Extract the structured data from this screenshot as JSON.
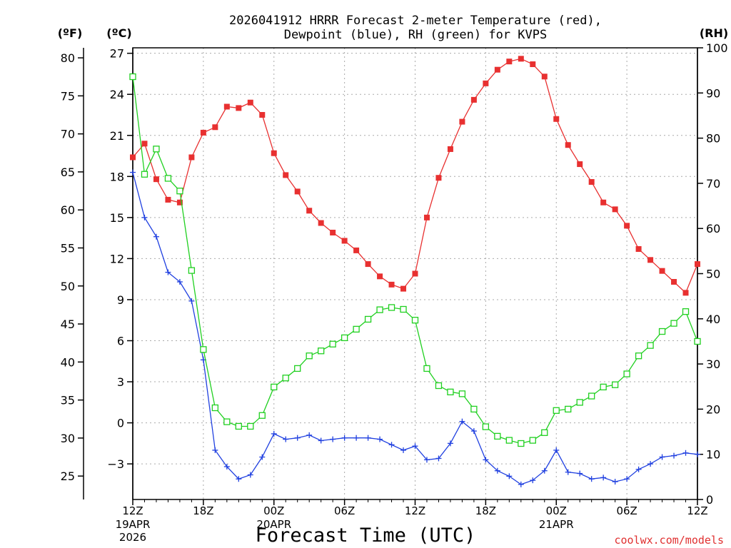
{
  "chart_data": {
    "type": "line",
    "title_line1": "2026041912 HRRR Forecast 2-meter Temperature (red),",
    "title_line2": "Dewpoint (blue), RH (green) for KVPS",
    "xlabel": "Forecast Time (UTC)",
    "credit": "coolwx.com/models",
    "units": {
      "fahrenheit": "(ºF)",
      "celsius": "(ºC)",
      "rh": "(RH)"
    },
    "x_range": [
      0,
      48
    ],
    "celsius_axis": {
      "range": [
        -5.6,
        27.4
      ],
      "ticks": [
        "27",
        "24",
        "21",
        "18",
        "15",
        "12",
        "9",
        "6",
        "3",
        "0",
        "−3"
      ],
      "tick_values": [
        27,
        24,
        21,
        18,
        15,
        12,
        9,
        6,
        3,
        0,
        -3
      ]
    },
    "fahrenheit_axis": {
      "ticks": [
        "80",
        "75",
        "70",
        "65",
        "60",
        "55",
        "50",
        "45",
        "40",
        "35",
        "30",
        "25"
      ],
      "tick_values": [
        80,
        75,
        70,
        65,
        60,
        55,
        50,
        45,
        40,
        35,
        30,
        25
      ]
    },
    "rh_axis": {
      "range": [
        0,
        100
      ],
      "ticks": [
        "100",
        "90",
        "80",
        "70",
        "60",
        "50",
        "40",
        "30",
        "20",
        "10",
        "0"
      ],
      "tick_values": [
        100,
        90,
        80,
        70,
        60,
        50,
        40,
        30,
        20,
        10,
        0
      ]
    },
    "x_ticks": [
      {
        "x": 0,
        "label": "12Z",
        "sub1": "19APR",
        "sub2": "2026"
      },
      {
        "x": 6,
        "label": "18Z",
        "sub1": "",
        "sub2": ""
      },
      {
        "x": 12,
        "label": "00Z",
        "sub1": "20APR",
        "sub2": ""
      },
      {
        "x": 18,
        "label": "06Z",
        "sub1": "",
        "sub2": ""
      },
      {
        "x": 24,
        "label": "12Z",
        "sub1": "",
        "sub2": ""
      },
      {
        "x": 30,
        "label": "18Z",
        "sub1": "",
        "sub2": ""
      },
      {
        "x": 36,
        "label": "00Z",
        "sub1": "21APR",
        "sub2": ""
      },
      {
        "x": 42,
        "label": "06Z",
        "sub1": "",
        "sub2": ""
      },
      {
        "x": 48,
        "label": "12Z",
        "sub1": "",
        "sub2": ""
      }
    ],
    "grid": true,
    "series": [
      {
        "color": "#e83030",
        "marker": "filled-square",
        "unit": "C",
        "values": [
          19.4,
          20.4,
          17.8,
          16.3,
          16.1,
          19.4,
          21.2,
          21.6,
          23.1,
          23.0,
          23.4,
          22.5,
          19.7,
          18.1,
          16.9,
          15.5,
          14.6,
          13.9,
          13.3,
          12.6,
          11.6,
          10.7,
          10.1,
          9.8,
          10.9,
          15.0,
          17.9,
          20.0,
          22.0,
          23.6,
          24.8,
          25.8,
          26.4,
          26.6,
          26.2,
          25.3,
          22.2,
          20.3,
          18.9,
          17.6,
          16.1,
          15.6,
          14.4,
          12.7,
          11.9,
          11.1,
          10.3,
          9.5,
          11.6
        ]
      },
      {
        "color": "#2040e0",
        "marker": "plus",
        "unit": "C",
        "values": [
          18.3,
          15.0,
          13.6,
          11.0,
          10.3,
          8.9,
          4.6,
          -2.0,
          -3.2,
          -4.1,
          -3.8,
          -2.5,
          -0.8,
          -1.2,
          -1.1,
          -0.9,
          -1.3,
          -1.2,
          -1.1,
          -1.1,
          -1.1,
          -1.2,
          -1.6,
          -2.0,
          -1.7,
          -2.7,
          -2.6,
          -1.5,
          0.1,
          -0.6,
          -2.7,
          -3.5,
          -3.9,
          -4.5,
          -4.2,
          -3.5,
          -2.0,
          -3.6,
          -3.7,
          -4.1,
          -4.0,
          -4.3,
          -4.1,
          -3.4,
          -3.0,
          -2.5,
          -2.4,
          -2.2,
          -2.3
        ]
      },
      {
        "color": "#20d020",
        "marker": "open-square",
        "unit": "RH",
        "values": [
          93.6,
          72.0,
          77.6,
          71.1,
          68.3,
          50.7,
          33.2,
          20.3,
          17.2,
          16.2,
          16.2,
          18.6,
          24.9,
          26.9,
          29.0,
          31.8,
          32.9,
          34.4,
          35.8,
          37.7,
          39.9,
          42.0,
          42.5,
          42.1,
          39.7,
          29.0,
          25.2,
          23.8,
          23.4,
          20.0,
          16.1,
          14.0,
          13.1,
          12.4,
          13.1,
          14.8,
          19.7,
          20.0,
          21.5,
          22.9,
          24.9,
          25.4,
          27.8,
          31.8,
          34.1,
          37.2,
          39.0,
          41.6,
          35.0
        ]
      }
    ]
  }
}
